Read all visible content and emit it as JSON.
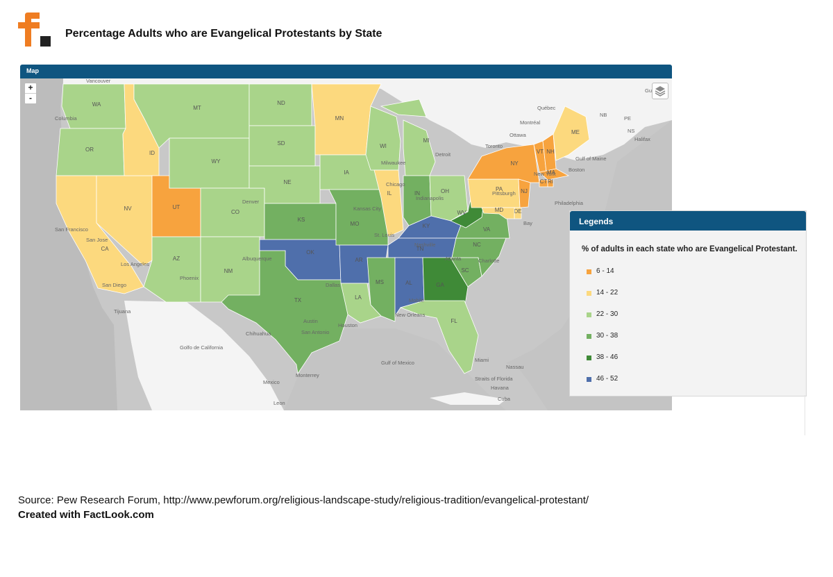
{
  "title": "Percentage Adults who are Evangelical Protestants by State",
  "map_panel": {
    "header": "Map",
    "zoom_in": "+",
    "zoom_out": "-"
  },
  "legend": {
    "header": "Legends",
    "subtitle": "% of adults in each state who are Evangelical Protestant.",
    "items": [
      {
        "label": "6 - 14",
        "color": "#f7a33e"
      },
      {
        "label": "14 - 22",
        "color": "#fcd97e"
      },
      {
        "label": "22 - 30",
        "color": "#a9d48a"
      },
      {
        "label": "30 - 38",
        "color": "#73b061"
      },
      {
        "label": "38 - 46",
        "color": "#3f8a37"
      },
      {
        "label": "46 - 52",
        "color": "#4f6fab"
      }
    ]
  },
  "states": [
    {
      "abbr": "WA",
      "range": "22 - 30"
    },
    {
      "abbr": "OR",
      "range": "22 - 30"
    },
    {
      "abbr": "CA",
      "range": "14 - 22"
    },
    {
      "abbr": "NV",
      "range": "14 - 22"
    },
    {
      "abbr": "ID",
      "range": "14 - 22"
    },
    {
      "abbr": "UT",
      "range": "6 - 14"
    },
    {
      "abbr": "AZ",
      "range": "22 - 30"
    },
    {
      "abbr": "MT",
      "range": "22 - 30"
    },
    {
      "abbr": "WY",
      "range": "22 - 30"
    },
    {
      "abbr": "CO",
      "range": "22 - 30"
    },
    {
      "abbr": "NM",
      "range": "22 - 30"
    },
    {
      "abbr": "ND",
      "range": "22 - 30"
    },
    {
      "abbr": "SD",
      "range": "22 - 30"
    },
    {
      "abbr": "NE",
      "range": "22 - 30"
    },
    {
      "abbr": "KS",
      "range": "30 - 38"
    },
    {
      "abbr": "OK",
      "range": "46 - 52"
    },
    {
      "abbr": "TX",
      "range": "30 - 38"
    },
    {
      "abbr": "MN",
      "range": "14 - 22"
    },
    {
      "abbr": "IA",
      "range": "22 - 30"
    },
    {
      "abbr": "MO",
      "range": "30 - 38"
    },
    {
      "abbr": "AR",
      "range": "46 - 52"
    },
    {
      "abbr": "LA",
      "range": "22 - 30"
    },
    {
      "abbr": "WI",
      "range": "22 - 30"
    },
    {
      "abbr": "IL",
      "range": "14 - 22"
    },
    {
      "abbr": "MI",
      "range": "22 - 30"
    },
    {
      "abbr": "IN",
      "range": "30 - 38"
    },
    {
      "abbr": "OH",
      "range": "22 - 30"
    },
    {
      "abbr": "KY",
      "range": "46 - 52"
    },
    {
      "abbr": "TN",
      "range": "46 - 52"
    },
    {
      "abbr": "MS",
      "range": "30 - 38"
    },
    {
      "abbr": "AL",
      "range": "46 - 52"
    },
    {
      "abbr": "GA",
      "range": "38 - 46"
    },
    {
      "abbr": "FL",
      "range": "22 - 30"
    },
    {
      "abbr": "SC",
      "range": "30 - 38"
    },
    {
      "abbr": "NC",
      "range": "30 - 38"
    },
    {
      "abbr": "VA",
      "range": "30 - 38"
    },
    {
      "abbr": "WV",
      "range": "38 - 46"
    },
    {
      "abbr": "PA",
      "range": "14 - 22"
    },
    {
      "abbr": "NY",
      "range": "6 - 14"
    },
    {
      "abbr": "VT",
      "range": "6 - 14"
    },
    {
      "abbr": "NH",
      "range": "6 - 14"
    },
    {
      "abbr": "ME",
      "range": "14 - 22"
    },
    {
      "abbr": "MA",
      "range": "6 - 14"
    },
    {
      "abbr": "CT",
      "range": "6 - 14"
    },
    {
      "abbr": "RI",
      "range": "6 - 14"
    },
    {
      "abbr": "NJ",
      "range": "6 - 14"
    },
    {
      "abbr": "DE",
      "range": "14 - 22"
    },
    {
      "abbr": "MD",
      "range": "14 - 22"
    }
  ],
  "basemap_labels": [
    "Vancouver",
    "Columbia",
    "Gulf of St",
    "Québec",
    "Montréal",
    "Ottawa",
    "Toronto",
    "NB",
    "PE",
    "NS",
    "Halifax",
    "Gulf of Maine",
    "Boston",
    "New York",
    "Philadelphia",
    "Bay",
    "Chicago",
    "Indianapolis",
    "Milwaukee",
    "Detroit",
    "Kansas City",
    "St. Louis",
    "Pittsburgh",
    "Nashville",
    "Atlanta",
    "Charlotte",
    "Denver",
    "San Francisco",
    "San Jose",
    "Los Angeles",
    "San Diego",
    "Tijuana",
    "Phoenix",
    "Albuquerque",
    "Dallas",
    "Austin",
    "San Antonio",
    "Houston",
    "New Orleans",
    "Chihuahua",
    "Golfo de California",
    "Monterrey",
    "Mexico",
    "Leon",
    "Gulf of Mexico",
    "Miami",
    "Nassau",
    "Straits of Florida",
    "Havana",
    "Cuba",
    "Mobile"
  ],
  "source": "Source: Pew Research Forum, http://www.pewforum.org/religious-landscape-study/religious-tradition/evangelical-protestant/",
  "credit": "Created with FactLook.com"
}
